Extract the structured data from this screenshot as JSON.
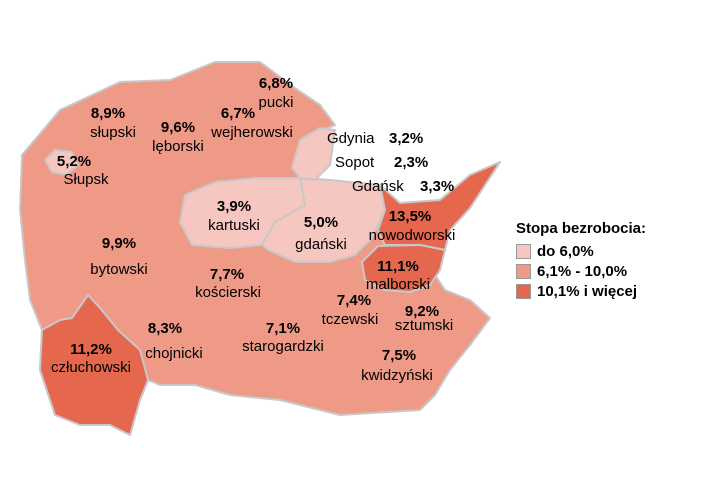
{
  "colors": {
    "low": "#f6c6c0",
    "mid": "#ef9a87",
    "high": "#e5674e",
    "border": "#c8c8c8"
  },
  "legend": {
    "title": "Stopa bezrobocia:",
    "items": [
      {
        "label": "do 6,0%",
        "level": "low"
      },
      {
        "label": "6,1% - 10,0%",
        "level": "mid"
      },
      {
        "label": "10,1% i więcej",
        "level": "high"
      }
    ]
  },
  "cities": [
    {
      "name": "Gdynia",
      "value": "3,2%"
    },
    {
      "name": "Sopot",
      "value": "2,3%"
    },
    {
      "name": "Gdańsk",
      "value": "3,3%"
    }
  ],
  "districts": {
    "pucki": {
      "name": "pucki",
      "value": "6,8%",
      "level": "mid"
    },
    "wejherowski": {
      "name": "wejherowski",
      "value": "6,7%",
      "level": "mid"
    },
    "slupski": {
      "name": "słupski",
      "value": "8,9%",
      "level": "mid"
    },
    "leborski": {
      "name": "lęborski",
      "value": "9,6%",
      "level": "mid"
    },
    "slupsk": {
      "name": "Słupsk",
      "value": "5,2%",
      "level": "low"
    },
    "kartuski": {
      "name": "kartuski",
      "value": "3,9%",
      "level": "low"
    },
    "gdanski": {
      "name": "gdański",
      "value": "5,0%",
      "level": "low"
    },
    "nowodworski": {
      "name": "nowodworski",
      "value": "13,5%",
      "level": "high"
    },
    "bytowski": {
      "name": "bytowski",
      "value": "9,9%",
      "level": "mid"
    },
    "koscierski": {
      "name": "kościerski",
      "value": "7,7%",
      "level": "mid"
    },
    "malborski": {
      "name": "malborski",
      "value": "11,1%",
      "level": "high"
    },
    "tczewski": {
      "name": "tczewski",
      "value": "7,4%",
      "level": "mid"
    },
    "sztumski": {
      "name": "sztumski",
      "value": "9,2%",
      "level": "mid"
    },
    "czluchowski": {
      "name": "człuchowski",
      "value": "11,2%",
      "level": "high"
    },
    "chojnicki": {
      "name": "chojnicki",
      "value": "8,3%",
      "level": "mid"
    },
    "starogardzki": {
      "name": "starogardzki",
      "value": "7,1%",
      "level": "mid"
    },
    "kwidzynski": {
      "name": "kwidzyński",
      "value": "7,5%",
      "level": "mid"
    }
  }
}
